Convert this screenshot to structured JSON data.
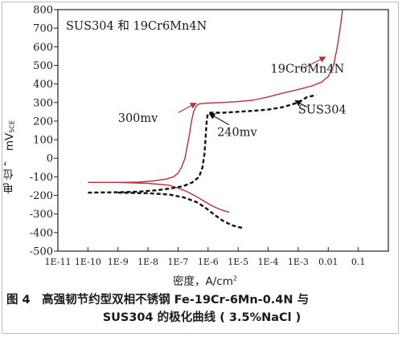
{
  "figure": {
    "caption_line1": "图 4　高强韧节约型双相不锈钢 Fe-19Cr-6Mn-0.4N 与",
    "caption_line2": "SUS304 的极化曲线 ( 3.5%NaCl )"
  },
  "chart_data": {
    "type": "line",
    "title": "SUS304 和 19Cr6Mn4N",
    "xlabel_main": "密度，A/cm",
    "xlabel_sup": "2",
    "ylabel_main": "电 位 ， mV",
    "ylabel_sub": "SCE",
    "x_scale": "log",
    "xlim": [
      1e-11,
      1
    ],
    "ylim": [
      -500,
      800
    ],
    "x_ticks": [
      {
        "value": 1e-11,
        "label": "1E-11"
      },
      {
        "value": 1e-10,
        "label": "1E-10"
      },
      {
        "value": 1e-09,
        "label": "1E-9"
      },
      {
        "value": 1e-08,
        "label": "1E-8"
      },
      {
        "value": 1e-07,
        "label": "1E-7"
      },
      {
        "value": 1e-06,
        "label": "1E-6"
      },
      {
        "value": 1e-05,
        "label": "1E-5"
      },
      {
        "value": 0.0001,
        "label": "1E-4"
      },
      {
        "value": 0.001,
        "label": "1E-3"
      },
      {
        "value": 0.01,
        "label": "0.01"
      },
      {
        "value": 0.1,
        "label": "0.1"
      }
    ],
    "y_ticks": [
      {
        "value": 800,
        "label": "800"
      },
      {
        "value": 700,
        "label": "700"
      },
      {
        "value": 600,
        "label": "600"
      },
      {
        "value": 500,
        "label": "500"
      },
      {
        "value": 400,
        "label": "400"
      },
      {
        "value": 300,
        "label": "300"
      },
      {
        "value": 200,
        "label": "200"
      },
      {
        "value": 100,
        "label": "100"
      },
      {
        "value": 0,
        "label": "0"
      },
      {
        "value": -100,
        "label": "-100"
      },
      {
        "value": -200,
        "label": "-200"
      },
      {
        "value": -300,
        "label": "-300"
      },
      {
        "value": -400,
        "label": "-400"
      },
      {
        "value": -500,
        "label": "-500"
      }
    ],
    "series": [
      {
        "name": "19Cr6Mn4N",
        "color": "#b5303a",
        "dash": "solid",
        "anodic": [
          [
            1e-10,
            -130
          ],
          [
            1e-09,
            -130
          ],
          [
            5e-09,
            -128
          ],
          [
            1.5e-08,
            -122
          ],
          [
            4e-08,
            -112
          ],
          [
            7e-08,
            -100
          ],
          [
            1e-07,
            -80
          ],
          [
            1.3e-07,
            -50
          ],
          [
            1.7e-07,
            0
          ],
          [
            2e-07,
            60
          ],
          [
            2.4e-07,
            130
          ],
          [
            2.8e-07,
            200
          ],
          [
            3.3e-07,
            250
          ],
          [
            4e-07,
            280
          ],
          [
            5e-07,
            293
          ],
          [
            1e-06,
            297
          ],
          [
            3e-06,
            300
          ],
          [
            1e-05,
            305
          ],
          [
            3e-05,
            312
          ],
          [
            0.0001,
            330
          ],
          [
            0.0003,
            350
          ],
          [
            0.001,
            370
          ],
          [
            0.003,
            390
          ],
          [
            0.006,
            410
          ],
          [
            0.01,
            440
          ],
          [
            0.015,
            500
          ],
          [
            0.02,
            600
          ],
          [
            0.025,
            700
          ],
          [
            0.03,
            800
          ]
        ],
        "cathodic": [
          [
            1e-09,
            -130
          ],
          [
            1e-08,
            -135
          ],
          [
            5e-08,
            -145
          ],
          [
            1e-07,
            -160
          ],
          [
            2e-07,
            -180
          ],
          [
            4e-07,
            -205
          ],
          [
            8e-07,
            -235
          ],
          [
            1.5e-06,
            -260
          ],
          [
            3e-06,
            -280
          ],
          [
            5e-06,
            -290
          ]
        ]
      },
      {
        "name": "SUS304",
        "color": "#111111",
        "dash": "dashed",
        "anodic": [
          [
            1e-10,
            -185
          ],
          [
            1e-09,
            -183
          ],
          [
            5e-09,
            -180
          ],
          [
            2e-08,
            -172
          ],
          [
            6e-08,
            -162
          ],
          [
            1.5e-07,
            -150
          ],
          [
            3e-07,
            -130
          ],
          [
            5e-07,
            -100
          ],
          [
            6.5e-07,
            -50
          ],
          [
            7.5e-07,
            20
          ],
          [
            8.2e-07,
            100
          ],
          [
            8.8e-07,
            180
          ],
          [
            9.5e-07,
            230
          ],
          [
            1.1e-06,
            245
          ],
          [
            3e-06,
            245
          ],
          [
            1e-05,
            250
          ],
          [
            3e-05,
            255
          ],
          [
            0.0001,
            262
          ],
          [
            0.0003,
            275
          ],
          [
            0.001,
            300
          ],
          [
            0.002,
            330
          ],
          [
            0.004,
            340
          ]
        ],
        "cathodic": [
          [
            1e-09,
            -185
          ],
          [
            1e-08,
            -188
          ],
          [
            5e-08,
            -195
          ],
          [
            1.5e-07,
            -210
          ],
          [
            4e-07,
            -235
          ],
          [
            8e-07,
            -265
          ],
          [
            1.5e-06,
            -300
          ],
          [
            3e-06,
            -335
          ],
          [
            6e-06,
            -360
          ],
          [
            1e-05,
            -370
          ],
          [
            1.5e-05,
            -375
          ]
        ]
      }
    ],
    "annotations": [
      {
        "text": "300mv",
        "color": "#b5303a",
        "x": 1e-09,
        "y": 195
      },
      {
        "text": "240mv",
        "color": "#111111",
        "x": 2e-06,
        "y": 120
      },
      {
        "text": "SUS304",
        "color": "#111111",
        "x": 0.001,
        "y": 240
      },
      {
        "text": "19Cr6Mn4N",
        "color": "#b5303a",
        "x": 0.00012,
        "y": 460
      }
    ],
    "arrows": [
      {
        "color": "#b5303a",
        "from": [
          1e-07,
          245
        ],
        "to": [
          4e-07,
          297
        ]
      },
      {
        "color": "#111111",
        "from": [
          5e-06,
          180
        ],
        "to": [
          1.1e-06,
          240
        ]
      },
      {
        "color": "#111111",
        "from": [
          0.002,
          275
        ],
        "to": [
          0.0008,
          310
        ]
      },
      {
        "color": "#b5303a",
        "from": [
          0.0015,
          485
        ],
        "to": [
          0.008,
          545
        ]
      }
    ]
  }
}
